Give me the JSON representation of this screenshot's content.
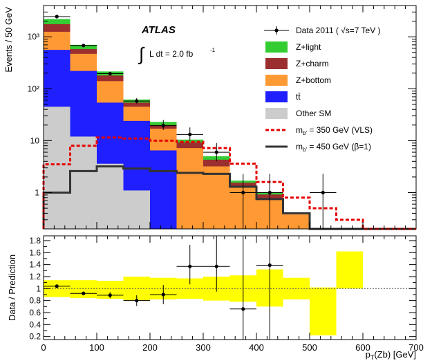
{
  "chart_data": [
    {
      "type": "bar",
      "panel": "main",
      "yscale": "log",
      "ylim": [
        0.2,
        4000
      ],
      "xlim": [
        0,
        700
      ],
      "ylabel": "Events / 50 GeV",
      "yticks": [
        {
          "v": 1,
          "label": "1"
        },
        {
          "v": 10,
          "label": "10"
        },
        {
          "v": 100,
          "label": "10²"
        },
        {
          "v": 1000,
          "label": "10³"
        }
      ],
      "bin_edges": [
        0,
        50,
        100,
        150,
        200,
        250,
        300,
        350,
        400,
        450,
        500,
        550,
        600,
        650,
        700
      ],
      "experiment": "ATLAS",
      "lumi_text": "L dt = 2.0 fb",
      "lumi_exp": "-1",
      "stack_order": [
        "other_sm",
        "ttbar",
        "zbottom",
        "zcharm",
        "zlight"
      ],
      "stack_cumulative": {
        "other_sm": [
          45,
          12,
          3.6,
          1.1,
          0.2,
          0.2,
          0.2,
          0.2,
          0.2,
          0.2,
          0.2,
          0.2
        ],
        "ttbar": [
          560,
          220,
          54,
          24,
          6.5,
          0.2,
          0.2,
          0.2,
          0.2,
          0.2,
          0.2,
          0.2
        ],
        "zbottom": [
          1250,
          470,
          140,
          45,
          17,
          7.2,
          3.2,
          1.25,
          0.75,
          0.38,
          0.2,
          0.2
        ],
        "zcharm": [
          1750,
          580,
          180,
          54,
          20,
          9.2,
          4.3,
          1.55,
          0.92,
          0.38,
          0.2,
          0.2
        ],
        "zlight": [
          2200,
          700,
          215,
          62,
          23,
          10.5,
          5.0,
          1.7,
          1.0,
          0.38,
          0.2,
          0.2
        ]
      },
      "series": [
        {
          "key": "data",
          "name": "Data 2011 ( √s=7 TeV )",
          "color": "#000000",
          "x": [
            25,
            75,
            125,
            175,
            225,
            275,
            325,
            375,
            425,
            525
          ],
          "y": [
            2450,
            680,
            195,
            58,
            19.5,
            13.2,
            6.0,
            1.0,
            1.0,
            1.0
          ],
          "ylo": [
            2400,
            665,
            185,
            52,
            16,
            10,
            4.0,
            0.2,
            0.2,
            0.2
          ],
          "yhi": [
            2500,
            700,
            205,
            66,
            25,
            18,
            9.0,
            2.3,
            2.3,
            2.3
          ]
        },
        {
          "key": "zlight",
          "name": "Z+light",
          "color": "#33cc33"
        },
        {
          "key": "zcharm",
          "name": "Z+charm",
          "color": "#9b2f2f"
        },
        {
          "key": "zbottom",
          "name": "Z+bottom",
          "color": "#ff9933"
        },
        {
          "key": "ttbar",
          "name": "tt̄",
          "color": "#1f1fff"
        },
        {
          "key": "other_sm",
          "name": "Other SM",
          "color": "#cccccc"
        },
        {
          "key": "vls",
          "name": "m",
          "name_sub": "b'",
          "name_rest": " = 350 GeV (VLS)",
          "color": "#e60000",
          "values": [
            3.5,
            8,
            11.5,
            11,
            10,
            9.5,
            7.2,
            3.6,
            1.6,
            0.8,
            0.5,
            0.3,
            0.2,
            0.2
          ]
        },
        {
          "key": "beta",
          "name": "m",
          "name_sub": "b'",
          "name_rest": " = 450 GeV (β=1)",
          "color": "#333333",
          "values": [
            1.0,
            2.6,
            3.2,
            2.9,
            2.6,
            2.4,
            2.3,
            1.3,
            0.75,
            0.4,
            0.2,
            0.2,
            0.2,
            0.2
          ]
        }
      ]
    },
    {
      "type": "scatter",
      "panel": "ratio",
      "ylabel": "Data / Prediction",
      "xlabel": "p",
      "xlabel_sub": "T",
      "xlabel_rest": "(Zb) [GeV]",
      "ylim": [
        0.15,
        1.88
      ],
      "yticks": [
        0.2,
        0.4,
        0.6,
        0.8,
        1,
        1.2,
        1.4,
        1.6,
        1.8
      ],
      "xticks": [
        0,
        100,
        200,
        300,
        400,
        500,
        600,
        700
      ],
      "band_color": "#ffff00",
      "band": [
        [
          0.86,
          1.14
        ],
        [
          0.84,
          1.14
        ],
        [
          0.83,
          1.13
        ],
        [
          0.8,
          1.2
        ],
        [
          0.82,
          1.18
        ],
        [
          0.83,
          1.17
        ],
        [
          0.8,
          1.2
        ],
        [
          0.78,
          1.22
        ],
        [
          0.7,
          1.32
        ],
        [
          0.82,
          1.18
        ],
        [
          0.22,
          1.02
        ],
        [
          1.0,
          1.62
        ]
      ],
      "points": {
        "x": [
          25,
          75,
          125,
          175,
          225,
          275,
          325,
          375,
          425
        ],
        "y": [
          1.04,
          0.92,
          0.89,
          0.8,
          0.9,
          1.37,
          1.37,
          0.66,
          1.39
        ],
        "ylo": [
          1.02,
          0.89,
          0.84,
          0.71,
          0.74,
          1.07,
          0.95,
          0.15,
          0.15
        ],
        "yhi": [
          1.06,
          0.95,
          0.94,
          0.89,
          1.06,
          1.73,
          1.88,
          1.88,
          1.88
        ]
      }
    }
  ]
}
